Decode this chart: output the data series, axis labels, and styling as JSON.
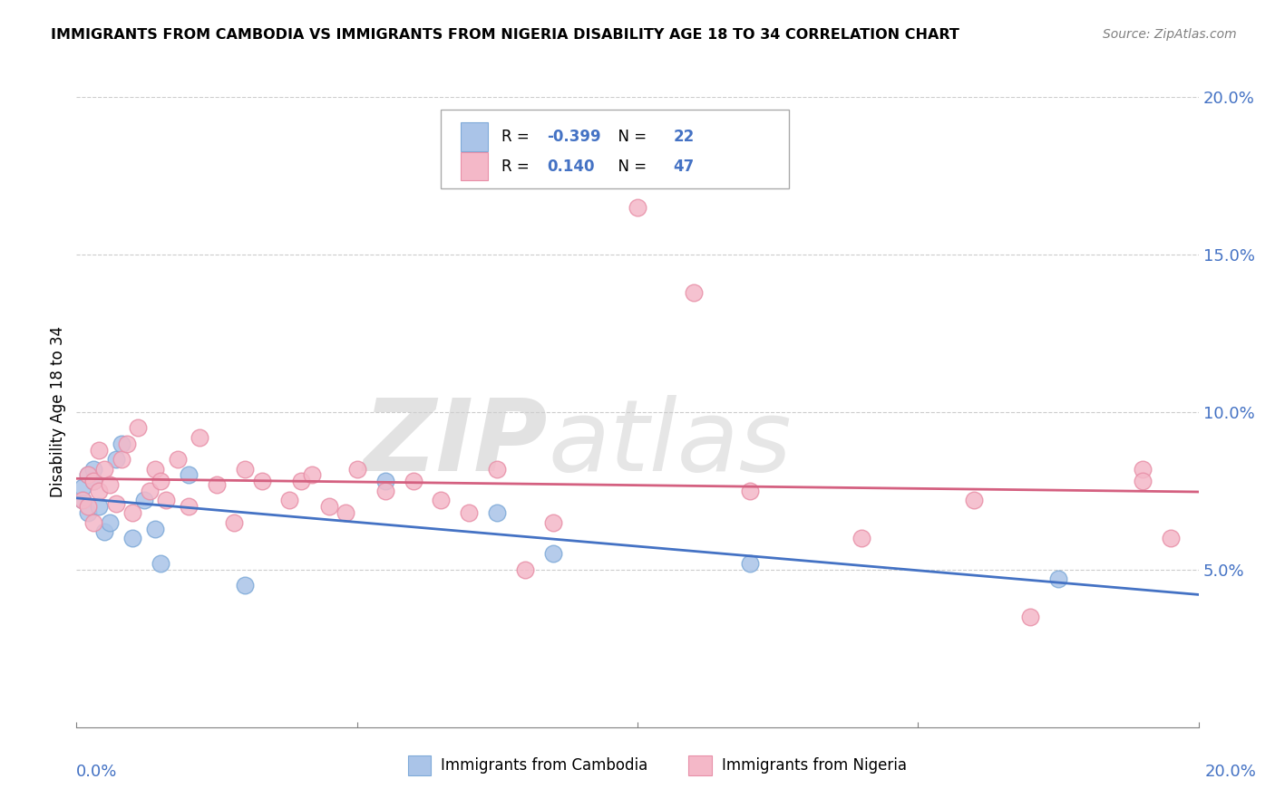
{
  "title": "IMMIGRANTS FROM CAMBODIA VS IMMIGRANTS FROM NIGERIA DISABILITY AGE 18 TO 34 CORRELATION CHART",
  "source": "Source: ZipAtlas.com",
  "ylabel": "Disability Age 18 to 34",
  "xlim": [
    0.0,
    0.2
  ],
  "ylim": [
    0.0,
    0.2
  ],
  "xtick_vals": [
    0.0,
    0.05,
    0.1,
    0.15,
    0.2
  ],
  "ytick_vals": [
    0.05,
    0.1,
    0.15,
    0.2
  ],
  "ytick_labels": [
    "5.0%",
    "10.0%",
    "15.0%",
    "20.0%"
  ],
  "x_left_label": "0.0%",
  "x_right_label": "20.0%",
  "cambodia_color": "#aac4e8",
  "nigeria_color": "#f4b8c8",
  "cambodia_edge_color": "#7faad8",
  "nigeria_edge_color": "#e890a8",
  "cambodia_line_color": "#4472c4",
  "nigeria_line_color": "#d46080",
  "cambodia_R": -0.399,
  "cambodia_N": 22,
  "nigeria_R": 0.14,
  "nigeria_N": 47,
  "watermark_zip": "ZIP",
  "watermark_atlas": "atlas",
  "legend_label_cambodia": "Immigrants from Cambodia",
  "legend_label_nigeria": "Immigrants from Nigeria",
  "tick_color": "#4472c4",
  "grid_color": "#cccccc",
  "cambodia_x": [
    0.001,
    0.001,
    0.002,
    0.002,
    0.003,
    0.003,
    0.004,
    0.005,
    0.006,
    0.007,
    0.008,
    0.01,
    0.012,
    0.014,
    0.015,
    0.02,
    0.03,
    0.055,
    0.075,
    0.085,
    0.12,
    0.175
  ],
  "cambodia_y": [
    0.072,
    0.076,
    0.068,
    0.08,
    0.078,
    0.082,
    0.07,
    0.062,
    0.065,
    0.085,
    0.09,
    0.06,
    0.072,
    0.063,
    0.052,
    0.08,
    0.045,
    0.078,
    0.068,
    0.055,
    0.052,
    0.047
  ],
  "nigeria_x": [
    0.001,
    0.002,
    0.002,
    0.003,
    0.003,
    0.004,
    0.004,
    0.005,
    0.006,
    0.007,
    0.008,
    0.009,
    0.01,
    0.011,
    0.013,
    0.014,
    0.015,
    0.016,
    0.018,
    0.02,
    0.022,
    0.025,
    0.028,
    0.03,
    0.033,
    0.038,
    0.04,
    0.042,
    0.045,
    0.048,
    0.05,
    0.055,
    0.06,
    0.065,
    0.07,
    0.075,
    0.08,
    0.085,
    0.1,
    0.11,
    0.12,
    0.14,
    0.16,
    0.17,
    0.19,
    0.19,
    0.195
  ],
  "nigeria_y": [
    0.072,
    0.08,
    0.07,
    0.065,
    0.078,
    0.075,
    0.088,
    0.082,
    0.077,
    0.071,
    0.085,
    0.09,
    0.068,
    0.095,
    0.075,
    0.082,
    0.078,
    0.072,
    0.085,
    0.07,
    0.092,
    0.077,
    0.065,
    0.082,
    0.078,
    0.072,
    0.078,
    0.08,
    0.07,
    0.068,
    0.082,
    0.075,
    0.078,
    0.072,
    0.068,
    0.082,
    0.05,
    0.065,
    0.165,
    0.138,
    0.075,
    0.06,
    0.072,
    0.035,
    0.082,
    0.078,
    0.06
  ]
}
